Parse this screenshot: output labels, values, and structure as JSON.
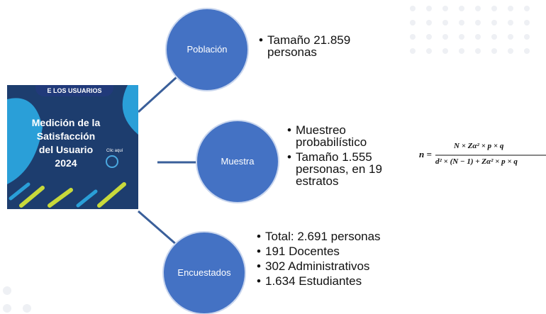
{
  "banner": {
    "strip": "E LOS USUARIOS",
    "title_lines": [
      "Medición de la",
      "Satisfacción",
      "del Usuario",
      "2024"
    ],
    "click": "Clic aquí"
  },
  "nodes": [
    {
      "label": "Población",
      "bullets": [
        "Tamaño 21.859 personas"
      ]
    },
    {
      "label": "Muestra",
      "bullets": [
        "Muestreo probabilístico",
        "Tamaño 1.555 personas, en 19 estratos"
      ]
    },
    {
      "label": "Encuestados",
      "bullets": [
        "Total: 2.691 personas",
        "191 Docentes",
        "302 Administrativos",
        "1.634 Estudiantes"
      ]
    }
  ],
  "formula": {
    "lhs": "n =",
    "numerator": "N × Zα² × p × q",
    "denominator": "d² × (N − 1) + Zα² × p × q"
  }
}
